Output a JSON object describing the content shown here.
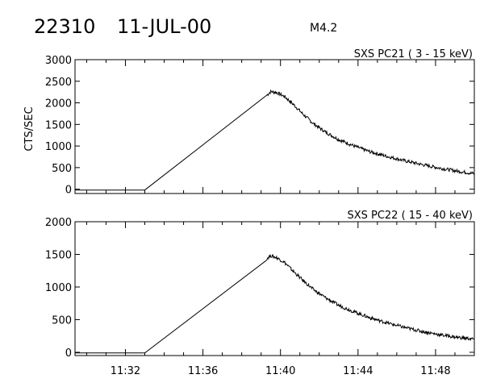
{
  "header": {
    "event_id": "22310",
    "date": "11-JUL-00",
    "flare_class": "M4.2"
  },
  "chart_data": [
    {
      "type": "line",
      "title": "SXS PC21  (  3 - 15 keV)",
      "ylabel": "CTS/SEC",
      "xlabel": "",
      "ylim": [
        -100,
        3000
      ],
      "y_ticks": [
        0,
        500,
        1000,
        1500,
        2000,
        2500,
        3000
      ],
      "x_ticks": [
        "11:32",
        "11:36",
        "11:40",
        "11:44",
        "11:48"
      ],
      "xlim_minutes": [
        "11:29.4",
        "11:50.0"
      ],
      "series": [
        {
          "values_note": "",
          "points": [
            [
              "11:29.4",
              -20
            ],
            [
              "11:33.0",
              -20
            ],
            [
              "11:33.0",
              -20
            ],
            [
              "11:39.3",
              2180
            ],
            [
              "11:39.5",
              2260
            ],
            [
              "11:39.8",
              2240
            ],
            [
              "11:40.2",
              2150
            ],
            [
              "11:40.7",
              1950
            ],
            [
              "11:41.2",
              1720
            ],
            [
              "11:41.7",
              1520
            ],
            [
              "11:42.3",
              1330
            ],
            [
              "11:43.0",
              1150
            ],
            [
              "11:43.8",
              1000
            ],
            [
              "11:44.6",
              870
            ],
            [
              "11:45.5",
              760
            ],
            [
              "11:46.4",
              660
            ],
            [
              "11:47.3",
              570
            ],
            [
              "11:48.2",
              490
            ],
            [
              "11:49.1",
              420
            ],
            [
              "11:50.0",
              360
            ]
          ]
        }
      ],
      "grid": false
    },
    {
      "type": "line",
      "title": "SXS PC22  ( 15 - 40 keV)",
      "ylabel": "",
      "xlabel": "",
      "ylim": [
        -50,
        2000
      ],
      "y_ticks": [
        0,
        500,
        1000,
        1500,
        2000
      ],
      "x_ticks": [
        "11:32",
        "11:36",
        "11:40",
        "11:44",
        "11:48"
      ],
      "xlim_minutes": [
        "11:29.4",
        "11:50.0"
      ],
      "series": [
        {
          "points": [
            [
              "11:29.4",
              -10
            ],
            [
              "11:33.0",
              -10
            ],
            [
              "11:33.0",
              -10
            ],
            [
              "11:39.3",
              1440
            ],
            [
              "11:39.5",
              1480
            ],
            [
              "11:39.8",
              1450
            ],
            [
              "11:40.2",
              1380
            ],
            [
              "11:40.7",
              1230
            ],
            [
              "11:41.2",
              1090
            ],
            [
              "11:41.7",
              960
            ],
            [
              "11:42.3",
              840
            ],
            [
              "11:43.0",
              720
            ],
            [
              "11:43.8",
              620
            ],
            [
              "11:44.6",
              530
            ],
            [
              "11:45.5",
              450
            ],
            [
              "11:46.4",
              380
            ],
            [
              "11:47.3",
              320
            ],
            [
              "11:48.2",
              270
            ],
            [
              "11:49.1",
              230
            ],
            [
              "11:50.0",
              200
            ]
          ]
        }
      ],
      "grid": false
    }
  ]
}
